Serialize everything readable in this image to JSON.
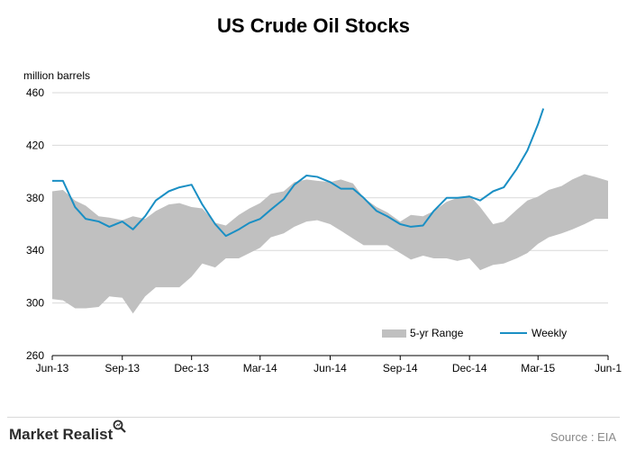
{
  "chart_data": {
    "type": "area",
    "title": "US Crude Oil Stocks",
    "ylabel": "million barrels",
    "xlabel": "",
    "ylim": [
      260,
      460
    ],
    "yticks": [
      260,
      300,
      340,
      380,
      420,
      460
    ],
    "xlim": [
      "2013-06-01",
      "2015-06-01"
    ],
    "xticks": [
      {
        "date": "2013-06-01",
        "label": "Jun-13"
      },
      {
        "date": "2013-09-01",
        "label": "Sep-13"
      },
      {
        "date": "2013-12-01",
        "label": "Dec-13"
      },
      {
        "date": "2014-03-01",
        "label": "Mar-14"
      },
      {
        "date": "2014-06-01",
        "label": "Jun-14"
      },
      {
        "date": "2014-09-01",
        "label": "Sep-14"
      },
      {
        "date": "2014-12-01",
        "label": "Dec-14"
      },
      {
        "date": "2015-03-01",
        "label": "Mar-15"
      },
      {
        "date": "2015-06-01",
        "label": "Jun-1"
      }
    ],
    "legend_position": "bottom-right",
    "grid": "horizontal",
    "series": [
      {
        "name": "5-yr Range",
        "kind": "band",
        "color": "#c0c0c0",
        "x": [
          "2013-06-01",
          "2013-06-15",
          "2013-07-01",
          "2013-07-15",
          "2013-08-01",
          "2013-08-15",
          "2013-09-01",
          "2013-09-15",
          "2013-10-01",
          "2013-10-15",
          "2013-11-01",
          "2013-11-15",
          "2013-12-01",
          "2013-12-15",
          "2014-01-01",
          "2014-01-15",
          "2014-02-01",
          "2014-02-15",
          "2014-03-01",
          "2014-03-15",
          "2014-04-01",
          "2014-04-15",
          "2014-05-01",
          "2014-05-15",
          "2014-06-01",
          "2014-06-15",
          "2014-07-01",
          "2014-07-15",
          "2014-08-01",
          "2014-08-15",
          "2014-09-01",
          "2014-09-15",
          "2014-10-01",
          "2014-10-15",
          "2014-11-01",
          "2014-11-15",
          "2014-12-01",
          "2014-12-15",
          "2015-01-01",
          "2015-01-15",
          "2015-02-01",
          "2015-02-15",
          "2015-03-01",
          "2015-03-15",
          "2015-04-01",
          "2015-04-15",
          "2015-05-01",
          "2015-05-15",
          "2015-06-01"
        ],
        "upper": [
          385,
          386,
          378,
          374,
          366,
          365,
          363,
          366,
          364,
          370,
          375,
          376,
          373,
          372,
          361,
          359,
          367,
          372,
          376,
          383,
          385,
          392,
          394,
          393,
          392,
          394,
          391,
          380,
          373,
          369,
          362,
          367,
          366,
          370,
          377,
          380,
          382,
          373,
          360,
          362,
          371,
          378,
          381,
          386,
          389,
          394,
          398,
          396,
          393
        ],
        "lower": [
          303,
          302,
          296,
          296,
          297,
          305,
          304,
          292,
          305,
          312,
          312,
          312,
          320,
          330,
          327,
          334,
          334,
          338,
          342,
          350,
          353,
          358,
          362,
          363,
          360,
          355,
          349,
          344,
          344,
          344,
          338,
          333,
          336,
          334,
          334,
          332,
          334,
          325,
          329,
          330,
          334,
          338,
          345,
          350,
          353,
          356,
          360,
          364,
          364
        ]
      },
      {
        "name": "Weekly",
        "kind": "line",
        "color": "#1a8fc4",
        "x": [
          "2013-06-01",
          "2013-06-15",
          "2013-07-01",
          "2013-07-15",
          "2013-08-01",
          "2013-08-15",
          "2013-09-01",
          "2013-09-15",
          "2013-10-01",
          "2013-10-15",
          "2013-11-01",
          "2013-11-15",
          "2013-12-01",
          "2013-12-15",
          "2014-01-01",
          "2014-01-15",
          "2014-02-01",
          "2014-02-15",
          "2014-03-01",
          "2014-03-15",
          "2014-04-01",
          "2014-04-15",
          "2014-05-01",
          "2014-05-15",
          "2014-06-01",
          "2014-06-15",
          "2014-07-01",
          "2014-07-15",
          "2014-08-01",
          "2014-08-15",
          "2014-09-01",
          "2014-09-15",
          "2014-10-01",
          "2014-10-15",
          "2014-11-01",
          "2014-11-15",
          "2014-12-01",
          "2014-12-15",
          "2015-01-01",
          "2015-01-15",
          "2015-02-01",
          "2015-02-15",
          "2015-03-01",
          "2015-03-08"
        ],
        "values": [
          393,
          393,
          373,
          364,
          362,
          358,
          362,
          356,
          366,
          378,
          385,
          388,
          390,
          375,
          360,
          351,
          356,
          361,
          364,
          371,
          379,
          390,
          397,
          396,
          392,
          387,
          387,
          380,
          370,
          366,
          360,
          358,
          359,
          370,
          380,
          380,
          381,
          378,
          385,
          388,
          402,
          416,
          436,
          448
        ]
      }
    ]
  },
  "legend": {
    "range_label": "5-yr Range",
    "weekly_label": "Weekly"
  },
  "branding": {
    "logo_text": "Market Realist",
    "source_text": "Source : EIA"
  },
  "colors": {
    "band": "#c0c0c0",
    "line": "#1a8fc4",
    "grid": "#d9d9d9"
  }
}
